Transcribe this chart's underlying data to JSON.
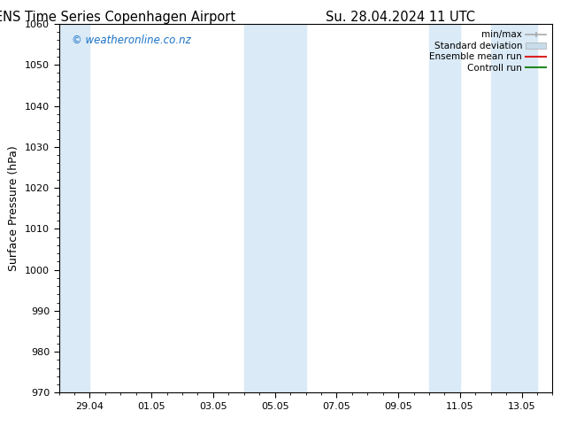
{
  "title_left": "ENS Time Series Copenhagen Airport",
  "title_right": "Su. 28.04.2024 11 UTC",
  "ylabel": "Surface Pressure (hPa)",
  "ylim": [
    970,
    1060
  ],
  "yticks": [
    970,
    980,
    990,
    1000,
    1010,
    1020,
    1030,
    1040,
    1050,
    1060
  ],
  "xtick_labels": [
    "29.04",
    "01.05",
    "03.05",
    "05.05",
    "07.05",
    "09.05",
    "11.05",
    "13.05"
  ],
  "xtick_positions": [
    1,
    3,
    5,
    7,
    9,
    11,
    13,
    15
  ],
  "xlim": [
    0,
    16
  ],
  "watermark": "© weatheronline.co.nz",
  "watermark_color": "#1a72c7",
  "background_color": "#ffffff",
  "plot_bg_color": "#ffffff",
  "shaded_bands": [
    {
      "x_start": 0.0,
      "x_end": 1.0,
      "color": "#daeaf6"
    },
    {
      "x_start": 6.0,
      "x_end": 8.0,
      "color": "#daeaf6"
    },
    {
      "x_start": 12.0,
      "x_end": 13.0,
      "color": "#daeaf6"
    },
    {
      "x_start": 14.0,
      "x_end": 15.5,
      "color": "#daeaf6"
    }
  ],
  "legend_labels": [
    "min/max",
    "Standard deviation",
    "Ensemble mean run",
    "Controll run"
  ],
  "legend_colors_line": [
    "#aaaaaa",
    "#c8dcea",
    "#dd2222",
    "#228822"
  ],
  "spine_color": "#000000",
  "title_fontsize": 10.5,
  "label_fontsize": 9,
  "tick_fontsize": 8,
  "watermark_fontsize": 8.5,
  "legend_fontsize": 7.5
}
